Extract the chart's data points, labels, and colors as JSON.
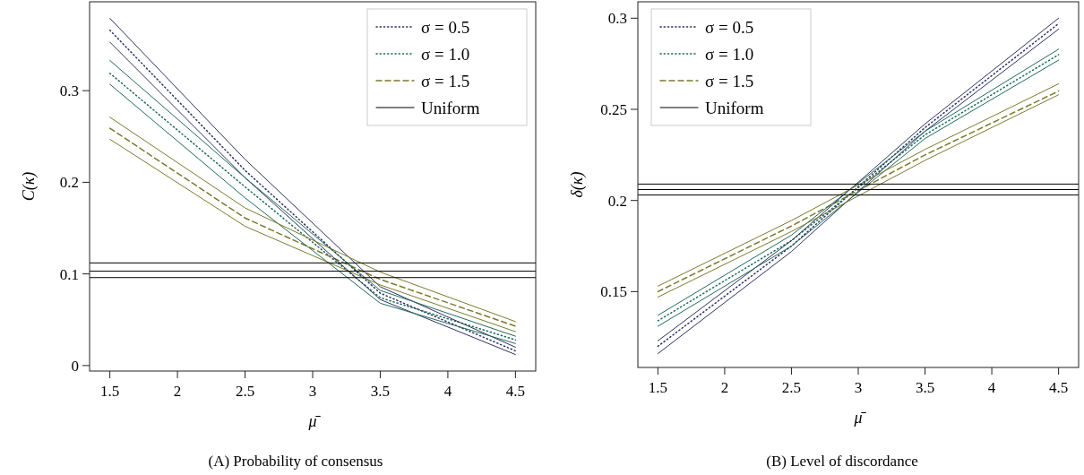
{
  "chart_data": [
    {
      "type": "line",
      "ylabel": "C(κ)",
      "xlabel": "μ̄",
      "annotations": [
        "(A) Probability of consensus"
      ],
      "x": [
        1.5,
        2.5,
        3.5,
        4.5
      ],
      "xlim": [
        1.35,
        4.65
      ],
      "ylim": [
        -0.006,
        0.397
      ],
      "xticks": [
        1.5,
        2,
        2.5,
        3,
        3.5,
        4,
        4.5
      ],
      "yticks": [
        0,
        0.1,
        0.2,
        0.3
      ],
      "legend": "top right",
      "grid": false,
      "series": [
        {
          "name": "σ = 0.5",
          "color": "#2e3266",
          "line_style": "dotted",
          "values": [
            0.366,
            0.213,
            0.079,
            0.016
          ]
        },
        {
          "name": "σ = 1.0",
          "color": "#1f6b5b",
          "line_style": "dotted",
          "values": [
            0.319,
            0.195,
            0.074,
            0.028
          ]
        },
        {
          "name": "σ = 1.5",
          "color": "#7a7a2e",
          "line_style": "dashed",
          "values": [
            0.259,
            0.161,
            0.094,
            0.043
          ]
        },
        {
          "color": "#2e3266",
          "line_style": "solid",
          "values": [
            0.353,
            0.205,
            0.072,
            0.012
          ]
        },
        {
          "color": "#2e3266",
          "line_style": "solid",
          "values": [
            0.379,
            0.225,
            0.086,
            0.02
          ]
        },
        {
          "color": "#1f6b5b",
          "line_style": "solid",
          "values": [
            0.307,
            0.183,
            0.068,
            0.024
          ]
        },
        {
          "color": "#1f6b5b",
          "line_style": "solid",
          "values": [
            0.333,
            0.205,
            0.082,
            0.032
          ]
        },
        {
          "color": "#7a7a2e",
          "line_style": "solid",
          "values": [
            0.247,
            0.152,
            0.088,
            0.037
          ]
        },
        {
          "color": "#7a7a2e",
          "line_style": "solid",
          "values": [
            0.271,
            0.172,
            0.102,
            0.048
          ]
        }
      ],
      "ref_lines": [
        {
          "axis": "y",
          "value": 0.103,
          "label": "Uniform",
          "color": "#000000"
        },
        {
          "axis": "y",
          "value": 0.096,
          "color": "#000000"
        },
        {
          "axis": "y",
          "value": 0.112,
          "color": "#000000"
        }
      ]
    },
    {
      "type": "line",
      "ylabel": "δ(κ)",
      "xlabel": "μ̄",
      "annotations": [
        "(B) Level of discordance"
      ],
      "x": [
        1.5,
        2.5,
        3.5,
        4.5
      ],
      "xlim": [
        1.35,
        4.65
      ],
      "ylim": [
        0.1084,
        0.309
      ],
      "xticks": [
        1.5,
        2,
        2.5,
        3,
        3.5,
        4,
        4.5
      ],
      "yticks": [
        0.15,
        0.2,
        0.25,
        0.3
      ],
      "legend": "top left",
      "grid": false,
      "series": [
        {
          "name": "σ = 0.5",
          "color": "#2e3266",
          "line_style": "dotted",
          "values": [
            0.12,
            0.175,
            0.24,
            0.297
          ]
        },
        {
          "name": "σ = 1.0",
          "color": "#1f6b5b",
          "line_style": "dotted",
          "values": [
            0.134,
            0.178,
            0.236,
            0.28
          ]
        },
        {
          "name": "σ = 1.5",
          "color": "#7a7a2e",
          "line_style": "dashed",
          "values": [
            0.15,
            0.186,
            0.225,
            0.26
          ]
        },
        {
          "color": "#2e3266",
          "line_style": "solid",
          "values": [
            0.116,
            0.172,
            0.238,
            0.294
          ]
        },
        {
          "color": "#2e3266",
          "line_style": "solid",
          "values": [
            0.123,
            0.178,
            0.242,
            0.3
          ]
        },
        {
          "color": "#1f6b5b",
          "line_style": "solid",
          "values": [
            0.131,
            0.175,
            0.234,
            0.277
          ]
        },
        {
          "color": "#1f6b5b",
          "line_style": "solid",
          "values": [
            0.137,
            0.181,
            0.238,
            0.283
          ]
        },
        {
          "color": "#7a7a2e",
          "line_style": "solid",
          "values": [
            0.147,
            0.183,
            0.222,
            0.258
          ]
        },
        {
          "color": "#7a7a2e",
          "line_style": "solid",
          "values": [
            0.153,
            0.189,
            0.228,
            0.264
          ]
        }
      ],
      "ref_lines": [
        {
          "axis": "y",
          "value": 0.206,
          "label": "Uniform",
          "color": "#000000"
        },
        {
          "axis": "y",
          "value": 0.203,
          "color": "#000000"
        },
        {
          "axis": "y",
          "value": 0.209,
          "color": "#000000"
        }
      ]
    }
  ]
}
